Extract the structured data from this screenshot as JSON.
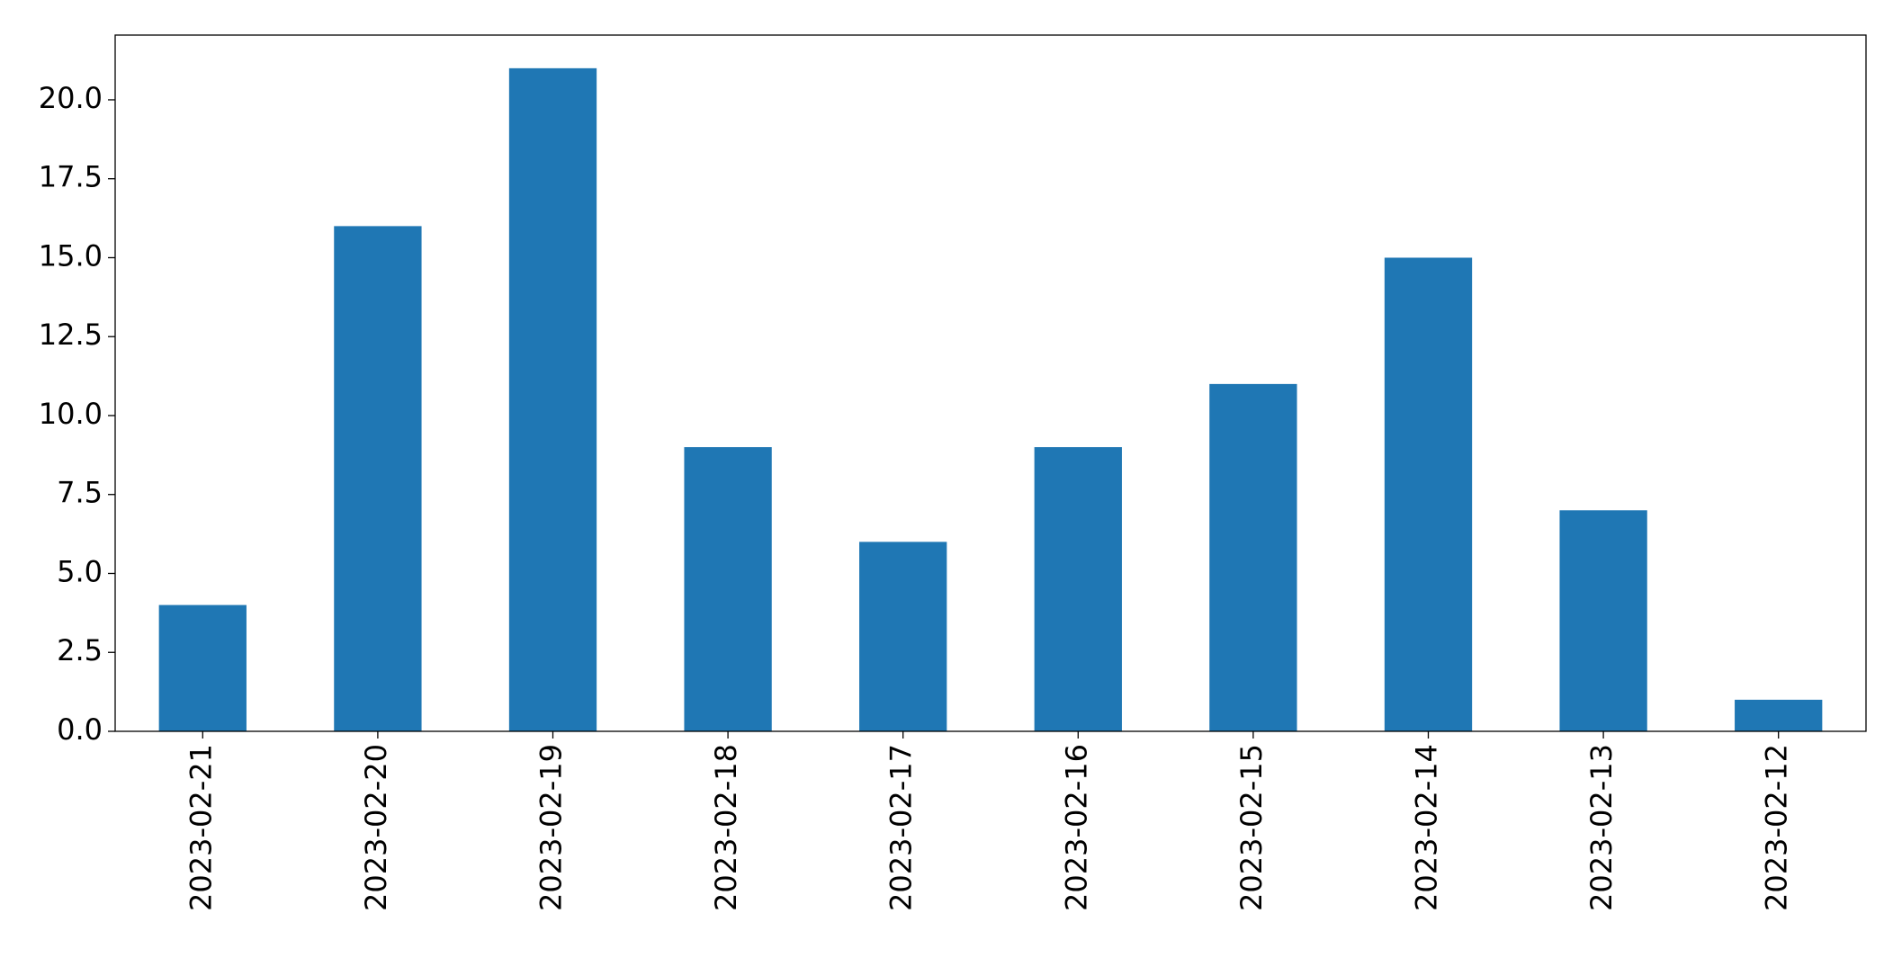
{
  "chart_data": {
    "type": "bar",
    "categories": [
      "2023-02-21",
      "2023-02-20",
      "2023-02-19",
      "2023-02-18",
      "2023-02-17",
      "2023-02-16",
      "2023-02-15",
      "2023-02-14",
      "2023-02-13",
      "2023-02-12"
    ],
    "values": [
      4,
      16,
      21,
      9,
      6,
      9,
      11,
      15,
      7,
      1
    ],
    "color": "#1f77b4",
    "ylim": [
      0,
      22.05
    ],
    "yticks": [
      {
        "value": 0,
        "label": "0.0"
      },
      {
        "value": 2.5,
        "label": "2.5"
      },
      {
        "value": 5,
        "label": "5.0"
      },
      {
        "value": 7.5,
        "label": "7.5"
      },
      {
        "value": 10,
        "label": "10.0"
      },
      {
        "value": 12.5,
        "label": "12.5"
      },
      {
        "value": 15,
        "label": "15.0"
      },
      {
        "value": 17.5,
        "label": "17.5"
      },
      {
        "value": 20,
        "label": "20.0"
      }
    ],
    "grid": false
  }
}
